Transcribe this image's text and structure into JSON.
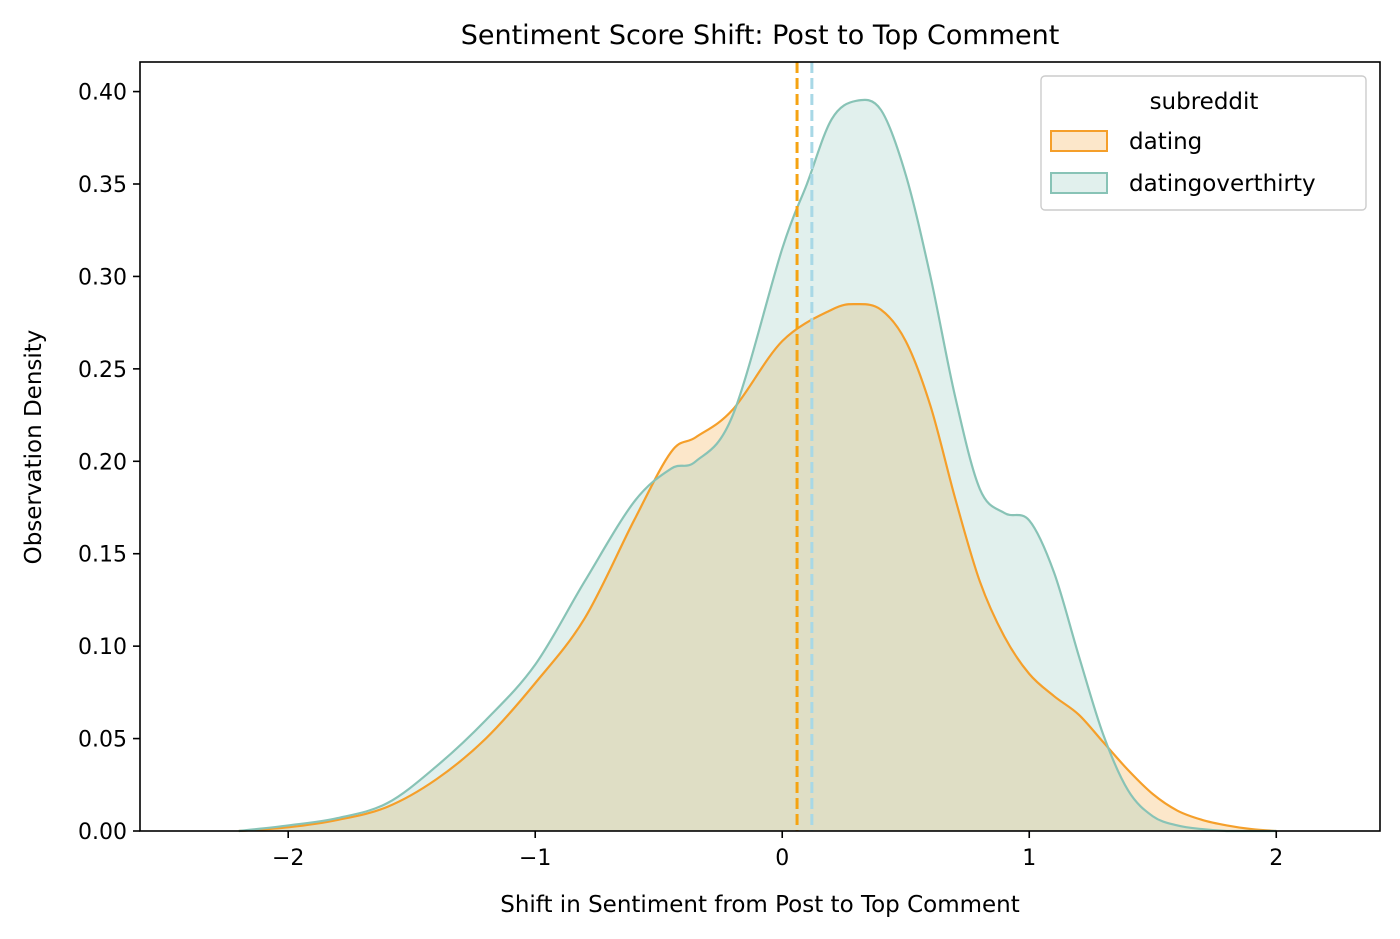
{
  "chart_data": {
    "type": "area",
    "title": "Sentiment Score Shift: Post to Top Comment",
    "xlabel": "Shift in Sentiment from Post to Top Comment",
    "ylabel": "Observation Density",
    "xlim": [
      -2.6,
      2.42
    ],
    "ylim": [
      0,
      0.416
    ],
    "x_ticks": [
      -2,
      -1,
      0,
      1,
      2
    ],
    "x_tick_labels": [
      "−2",
      "−1",
      "0",
      "1",
      "2"
    ],
    "y_ticks": [
      0,
      0.05,
      0.1,
      0.15,
      0.2,
      0.25,
      0.3,
      0.35,
      0.4
    ],
    "y_tick_labels": [
      "0.00",
      "0.05",
      "0.10",
      "0.15",
      "0.20",
      "0.25",
      "0.30",
      "0.35",
      "0.40"
    ],
    "grid": false,
    "legend": {
      "title": "subreddit",
      "position": "top-right"
    },
    "series": [
      {
        "name": "dating",
        "line_color": "#F59F2A",
        "fill_color": "#FDE3C3",
        "x": [
          -2.2,
          -2.0,
          -1.8,
          -1.6,
          -1.4,
          -1.2,
          -1.0,
          -0.8,
          -0.6,
          -0.45,
          -0.35,
          -0.2,
          0.0,
          0.2,
          0.3,
          0.4,
          0.5,
          0.6,
          0.7,
          0.8,
          0.9,
          1.0,
          1.1,
          1.2,
          1.3,
          1.4,
          1.5,
          1.6,
          1.7,
          1.8,
          1.9,
          2.0
        ],
        "values": [
          0.0,
          0.002,
          0.006,
          0.013,
          0.028,
          0.05,
          0.08,
          0.115,
          0.168,
          0.205,
          0.213,
          0.228,
          0.265,
          0.282,
          0.285,
          0.282,
          0.265,
          0.23,
          0.18,
          0.135,
          0.105,
          0.085,
          0.073,
          0.063,
          0.048,
          0.033,
          0.02,
          0.011,
          0.006,
          0.003,
          0.001,
          0.0
        ],
        "mean": 0.06
      },
      {
        "name": "datingoverthirty",
        "line_color": "#88C3B6",
        "fill_color": "#DDEFEA",
        "x": [
          -2.2,
          -2.0,
          -1.8,
          -1.6,
          -1.4,
          -1.2,
          -1.0,
          -0.8,
          -0.6,
          -0.45,
          -0.35,
          -0.2,
          0.0,
          0.1,
          0.2,
          0.3,
          0.4,
          0.5,
          0.6,
          0.7,
          0.8,
          0.9,
          1.0,
          1.1,
          1.2,
          1.3,
          1.4,
          1.5,
          1.6,
          1.7,
          1.8,
          1.9,
          2.0
        ],
        "values": [
          0.0,
          0.003,
          0.007,
          0.015,
          0.035,
          0.06,
          0.09,
          0.135,
          0.178,
          0.196,
          0.2,
          0.225,
          0.315,
          0.35,
          0.385,
          0.395,
          0.39,
          0.355,
          0.3,
          0.235,
          0.185,
          0.172,
          0.168,
          0.14,
          0.095,
          0.052,
          0.022,
          0.008,
          0.003,
          0.001,
          0.0,
          0.0,
          0.0
        ],
        "mean": 0.12
      }
    ],
    "reference_lines": [
      {
        "series": "dating",
        "x": 0.06,
        "style": "dashed",
        "color": "#F5A312"
      },
      {
        "series": "datingoverthirty",
        "x": 0.12,
        "style": "dashed",
        "color": "#A8D8E6"
      }
    ]
  }
}
